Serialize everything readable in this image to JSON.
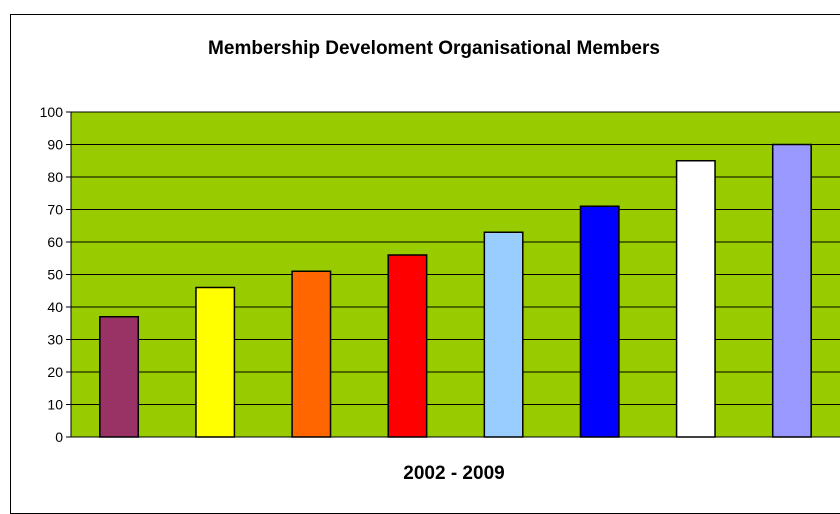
{
  "chart_data": {
    "type": "bar",
    "title": "Membership Develoment Organisational Members",
    "xlabel": "2002 - 2009",
    "ylabel": "",
    "ylim": [
      0,
      100
    ],
    "yticks": [
      0,
      10,
      20,
      30,
      40,
      50,
      60,
      70,
      80,
      90,
      100
    ],
    "grid": true,
    "legend": "none",
    "values": [
      37,
      46,
      51,
      56,
      63,
      71,
      85,
      90
    ],
    "bar_colors": [
      "#993366",
      "#ffff00",
      "#ff6600",
      "#ff0000",
      "#99ccff",
      "#0000ff",
      "#ffffff",
      "#9999ff"
    ]
  },
  "colors": {
    "plot_background": "#99cc00",
    "gridline": "#000000",
    "bar_border": "#000000"
  }
}
